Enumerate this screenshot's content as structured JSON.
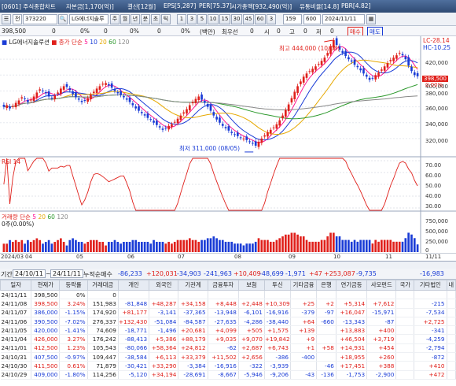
{
  "window": {
    "title_parts": [
      "[0601] 주식종합차트",
      "자본금[1,170(억)]",
      "결산[12월]",
      "EPS[5,287]",
      "PER[75.37]",
      "시가총액[932,490(억)]",
      "유통비율[14.8]",
      "PBR[4.82]"
    ]
  },
  "toolbar": {
    "code": "373220",
    "stock_name": "LG에너지솔루",
    "period_buttons": [
      "주",
      "월",
      "년",
      "분",
      "초",
      "틱"
    ],
    "interval_buttons": [
      "1",
      "3",
      "5",
      "10",
      "15",
      "30",
      "45",
      "60",
      "3"
    ],
    "count": "159",
    "count_unit": "600",
    "date": "2024/11/11"
  },
  "price_bar": {
    "price": "398,500",
    "items": [
      "0",
      "0%",
      "0",
      "0%",
      "0",
      "0%",
      "(백만)",
      "최우선",
      "0",
      "시",
      "0",
      "고",
      "0",
      "저",
      "0"
    ],
    "buy": "매수",
    "sell": "매도"
  },
  "chart": {
    "legend_name": "LG에너지솔루션",
    "legend_ma": "종가 단순",
    "ma_periods": [
      "5",
      "10",
      "20",
      "60",
      "120"
    ],
    "ma_colors": [
      "#ff1493",
      "#1a3cd6",
      "#e6a800",
      "#2e9a2e",
      "#888888"
    ],
    "high_annotation": "최고 444,000 (10/08)",
    "low_annotation": "최저 311,000 (08/05)",
    "right_top": "LC-28.14",
    "right_top2": "HC-10.25",
    "price_axis": [
      "420,000",
      "400,000",
      "380,000",
      "360,000",
      "340,000",
      "320,000"
    ],
    "current_price_tag": "398,500",
    "pct_tag": "0.00%",
    "rsi_label": "RSI 14",
    "rsi_axis": [
      "70.00",
      "60.00",
      "50.00",
      "40.00",
      "30.00"
    ],
    "volume_label": "거래량 단순",
    "volume_ma": [
      "5",
      "20",
      "60",
      "120"
    ],
    "volume_sub": "0주(0.00%)",
    "volume_axis": [
      "750,000",
      "500,000",
      "250,000",
      "0"
    ],
    "x_labels": [
      "2024/03",
      "04",
      "05",
      "06",
      "07",
      "08",
      "09",
      "10",
      "11",
      "11/11"
    ],
    "down_color": "#1a3cd6",
    "up_color": "#e0201b"
  },
  "chart_data": {
    "type": "candlestick",
    "title": "LG에너지솔루션",
    "ylim": [
      300000,
      445000
    ],
    "high": 444000,
    "high_date": "10/08",
    "low": 311000,
    "low_date": "08/05",
    "close_series": [
      360000,
      362000,
      358000,
      361000,
      365000,
      368000,
      372000,
      370000,
      366000,
      369000,
      373000,
      378000,
      382000,
      380000,
      377000,
      373000,
      371000,
      374000,
      378000,
      383000,
      386000,
      385000,
      381000,
      376000,
      372000,
      369000,
      366000,
      368000,
      371000,
      375000,
      379000,
      383000,
      386000,
      389000,
      390000,
      387000,
      384000,
      380000,
      377000,
      375000,
      372000,
      369000,
      366000,
      362000,
      358000,
      355000,
      352000,
      349000,
      346000,
      344000,
      340000,
      337000,
      334000,
      331000,
      333000,
      336000,
      338000,
      341000,
      345000,
      349000,
      353000,
      357000,
      362000,
      366000,
      370000,
      373000,
      369000,
      365000,
      360000,
      355000,
      349000,
      344000,
      340000,
      336000,
      333000,
      330000,
      327000,
      325000,
      323000,
      321000,
      320000,
      318000,
      316000,
      314000,
      311000,
      316000,
      320000,
      324000,
      328000,
      331000,
      334000,
      338000,
      343000,
      349000,
      356000,
      363000,
      371000,
      379000,
      386000,
      392000,
      398000,
      402000,
      405000,
      408000,
      411000,
      414000,
      418000,
      422000,
      428000,
      436000,
      444000,
      438000,
      432000,
      428000,
      424000,
      420000,
      417000,
      413000,
      410000,
      406000,
      402000,
      398000,
      394000,
      396000,
      400000,
      403000,
      407000,
      411000,
      415000,
      419000,
      422000,
      425000,
      428000,
      425000,
      420000,
      412000,
      405000,
      400000,
      398500
    ],
    "rsi_ylim": [
      30,
      70
    ],
    "rsi_last": 45,
    "volume_ylim": [
      0,
      750000
    ]
  },
  "grid": {
    "date_label": "기간",
    "date_from": "24/10/11",
    "date_to": "24/11/11",
    "unit_label": "누적순매수",
    "summary": [
      "-86,233",
      "+120,031",
      "-34,903",
      "-241,963",
      "+10,409",
      "-48,699",
      "-1,971",
      "+47",
      "+253,087",
      "-9,735",
      "-16,983"
    ],
    "headers": [
      "일자",
      "현재가",
      "등락률",
      "거래대금",
      "개인",
      "외국인",
      "기관계",
      "금융투자",
      "보험",
      "투신",
      "기타금융",
      "은행",
      "연기금등",
      "사모펀드",
      "국가",
      "기타법인",
      "내"
    ],
    "rows": [
      [
        "24/11/11",
        "398,500",
        "0%",
        "0",
        "",
        "",
        "",
        "",
        "",
        "",
        "",
        "",
        "",
        "",
        "",
        "",
        ""
      ],
      [
        "24/11/08",
        "398,500",
        "3.24%",
        "151,983",
        "-81,848",
        "+48,287",
        "+34,158",
        "+8,448",
        "+2,448",
        "+10,309",
        "+25",
        "+2",
        "+5,314",
        "+7,612",
        "",
        "-215",
        ""
      ],
      [
        "24/11/07",
        "386,000",
        "-1.15%",
        "174,920",
        "+81,177",
        "-3,141",
        "-37,365",
        "-13,948",
        "-6,101",
        "-16,916",
        "-379",
        "-97",
        "+16,047",
        "-15,971",
        "",
        "-7,534",
        ""
      ],
      [
        "24/11/06",
        "390,500",
        "-7.02%",
        "276,337",
        "+132,430",
        "-51,084",
        "-84,587",
        "-27,635",
        "-4,286",
        "-38,440",
        "+64",
        "-660",
        "-13,343",
        "-87",
        "",
        "+2,725",
        ""
      ],
      [
        "24/11/05",
        "420,000",
        "-1.41%",
        "74,609",
        "-18,771",
        "-1,496",
        "+20,681",
        "+4,099",
        "+505",
        "+1,575",
        "+139",
        "",
        "+13,883",
        "+400",
        "",
        "-341",
        ""
      ],
      [
        "24/11/04",
        "426,000",
        "3.27%",
        "176,242",
        "-88,413",
        "+5,386",
        "+88,179",
        "+9,035",
        "+9,070",
        "+19,842",
        "+9",
        "",
        "+46,504",
        "+3,719",
        "",
        "-4,259",
        ""
      ],
      [
        "24/11/01",
        "412,500",
        "1.23%",
        "105,543",
        "-80,066",
        "+58,364",
        "+24,812",
        "-62",
        "+2,687",
        "+6,743",
        "+1",
        "+58",
        "+14,931",
        "+454",
        "",
        "-2,794",
        ""
      ],
      [
        "24/10/31",
        "407,500",
        "-0.97%",
        "109,447",
        "-38,584",
        "+6,113",
        "+33,379",
        "+11,502",
        "+2,656",
        "-386",
        "-400",
        "",
        "+18,955",
        "+260",
        "",
        "-872",
        ""
      ],
      [
        "24/10/30",
        "411,500",
        "0.61%",
        "71,879",
        "-30,421",
        "+33,290",
        "-3,384",
        "-16,916",
        "-322",
        "-3,939",
        "",
        "-46",
        "+17,451",
        "+388",
        "",
        "+410",
        ""
      ],
      [
        "24/10/29",
        "409,000",
        "-1.80%",
        "114,256",
        "-5,120",
        "+34,194",
        "-28,691",
        "-8,667",
        "-5,946",
        "-9,206",
        "-43",
        "-136",
        "-1,753",
        "-2,900",
        "",
        "+472",
        ""
      ]
    ]
  }
}
